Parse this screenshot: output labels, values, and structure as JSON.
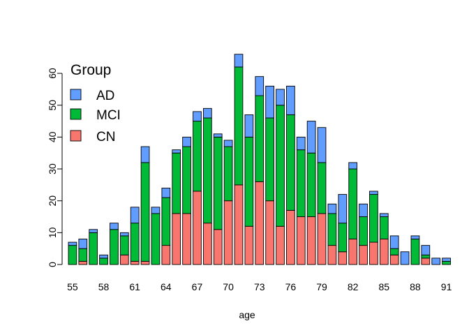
{
  "chart_data": {
    "type": "bar",
    "stacked": true,
    "title": "",
    "xlabel": "age",
    "ylabel": "",
    "ylim": [
      0,
      70
    ],
    "yticks": [
      0,
      10,
      20,
      30,
      40,
      50,
      60
    ],
    "xtick_labels": [
      "55",
      "58",
      "61",
      "64",
      "67",
      "70",
      "73",
      "76",
      "79",
      "82",
      "85",
      "88",
      "91"
    ],
    "grid": false,
    "legend": {
      "title": "Group",
      "position": "top-left",
      "entries": [
        {
          "label": "AD",
          "color": "#619CFF"
        },
        {
          "label": "MCI",
          "color": "#00BA38"
        },
        {
          "label": "CN",
          "color": "#F8766D"
        }
      ]
    },
    "categories": [
      "55",
      "56",
      "57",
      "58",
      "59",
      "60",
      "61",
      "62",
      "63",
      "64",
      "65",
      "66",
      "67",
      "68",
      "69",
      "70",
      "71",
      "72",
      "73",
      "74",
      "75",
      "76",
      "77",
      "78",
      "79",
      "80",
      "81",
      "82",
      "83",
      "84",
      "85",
      "86",
      "87",
      "88",
      "89",
      "90",
      "91"
    ],
    "series": [
      {
        "name": "CN",
        "color": "#F8766D",
        "values": [
          0,
          1,
          0,
          0,
          0,
          3,
          1,
          1,
          0,
          6,
          16,
          16,
          23,
          13,
          11,
          20,
          25,
          12,
          26,
          20,
          12,
          17,
          15,
          15,
          16,
          6,
          4,
          8,
          6,
          7,
          8,
          3,
          0,
          0,
          2,
          0,
          0
        ]
      },
      {
        "name": "MCI",
        "color": "#00BA38",
        "values": [
          6,
          4,
          10,
          2,
          11,
          6,
          12,
          31,
          16,
          15,
          19,
          21,
          22,
          33,
          29,
          17,
          37,
          28,
          27,
          26,
          38,
          30,
          21,
          20,
          16,
          10,
          9,
          22,
          9,
          15,
          7,
          2,
          0,
          8,
          1,
          0,
          1
        ]
      },
      {
        "name": "AD",
        "color": "#619CFF",
        "values": [
          1,
          3,
          1,
          1,
          2,
          1,
          5,
          5,
          2,
          3,
          1,
          3,
          3,
          3,
          1,
          2,
          4,
          7,
          6,
          10,
          5,
          9,
          4,
          10,
          11,
          3,
          9,
          2,
          4,
          1,
          1,
          4,
          4,
          1,
          3,
          2,
          1
        ]
      }
    ]
  }
}
